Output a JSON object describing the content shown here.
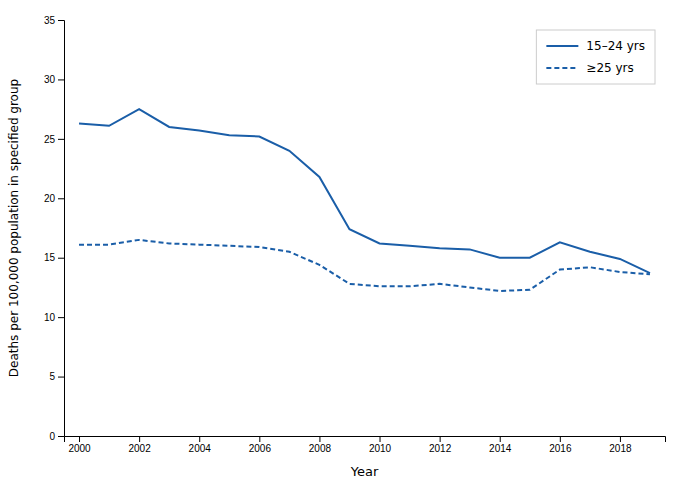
{
  "chart_data": {
    "type": "line",
    "x": [
      2000,
      2001,
      2002,
      2003,
      2004,
      2005,
      2006,
      2007,
      2008,
      2009,
      2010,
      2011,
      2012,
      2013,
      2014,
      2015,
      2016,
      2017,
      2018,
      2019
    ],
    "series": [
      {
        "name": "15–24 yrs",
        "color": "#1a5ea8",
        "line_style": "solid",
        "values": [
          26.3,
          26.1,
          27.5,
          26.0,
          25.7,
          25.3,
          25.2,
          24.0,
          21.8,
          17.4,
          16.2,
          16.0,
          15.8,
          15.7,
          15.0,
          15.0,
          16.3,
          15.5,
          14.9,
          13.7
        ]
      },
      {
        "name": "≥25 yrs",
        "color": "#1a5ea8",
        "line_style": "dashed",
        "values": [
          16.1,
          16.1,
          16.5,
          16.2,
          16.1,
          16.0,
          15.9,
          15.5,
          14.4,
          12.8,
          12.6,
          12.6,
          12.8,
          12.5,
          12.2,
          12.3,
          14.0,
          14.2,
          13.8,
          13.6
        ]
      }
    ],
    "xlabel": "Year",
    "ylabel": "Deaths per 100,000 population in specified group",
    "xlim": [
      1999.5,
      2019.5
    ],
    "ylim": [
      0,
      35
    ],
    "xticks": [
      2000,
      2002,
      2004,
      2006,
      2008,
      2010,
      2012,
      2014,
      2016,
      2018
    ],
    "yticks": [
      0,
      5,
      10,
      15,
      20,
      25,
      30,
      35
    ],
    "grid": false,
    "legend": "upper right"
  }
}
